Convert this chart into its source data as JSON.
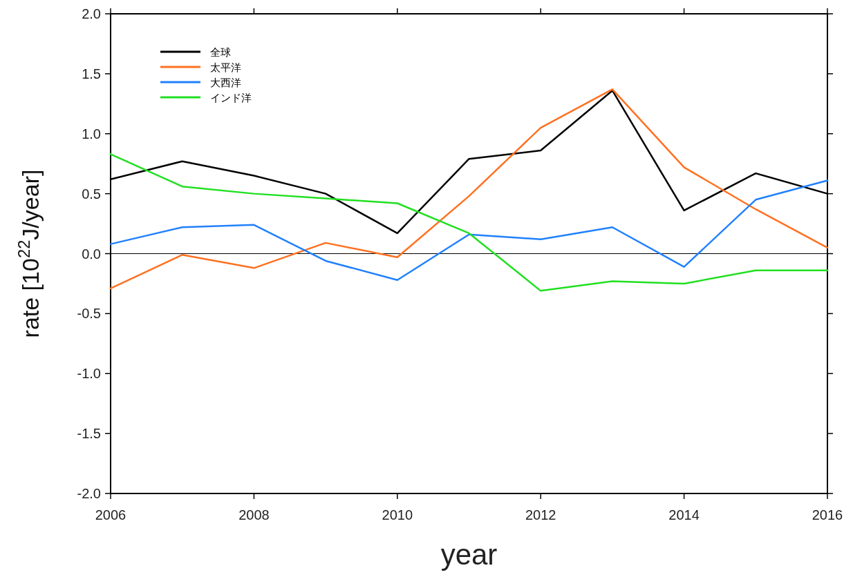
{
  "chart_data": {
    "type": "line",
    "xlabel": "year",
    "ylabel": "rate [10$^{22}$J/year]",
    "x": [
      2006,
      2007,
      2008,
      2009,
      2010,
      2011,
      2012,
      2013,
      2014,
      2015,
      2016
    ],
    "series": [
      {
        "name": "全球",
        "color": "#000000",
        "values": [
          0.62,
          0.77,
          0.65,
          0.5,
          0.17,
          0.79,
          0.86,
          1.36,
          0.36,
          0.67,
          0.5
        ]
      },
      {
        "name": "太平洋",
        "color": "#ff7020",
        "values": [
          -0.29,
          -0.01,
          -0.12,
          0.09,
          -0.03,
          0.48,
          1.05,
          1.37,
          0.72,
          0.37,
          0.05
        ]
      },
      {
        "name": "大西洋",
        "color": "#2080ff",
        "values": [
          0.08,
          0.22,
          0.24,
          -0.06,
          -0.22,
          0.16,
          0.12,
          0.22,
          -0.11,
          0.45,
          0.61
        ]
      },
      {
        "name": "インド洋",
        "color": "#20e020",
        "values": [
          0.83,
          0.56,
          0.5,
          0.46,
          0.42,
          0.17,
          -0.31,
          -0.23,
          -0.25,
          -0.14,
          -0.14
        ]
      }
    ],
    "xlim": [
      2006,
      2016
    ],
    "xticks": [
      2006,
      2008,
      2010,
      2012,
      2014,
      2016
    ],
    "ylim": [
      -2,
      2
    ],
    "yticks": [
      {
        "value": -2,
        "label": "-2.0"
      },
      {
        "value": -1.5,
        "label": "-1.5"
      },
      {
        "value": -1,
        "label": "-1.0"
      },
      {
        "value": -0.5,
        "label": "-0.5"
      },
      {
        "value": 0,
        "label": "0.0"
      },
      {
        "value": 0.5,
        "label": "0.5"
      },
      {
        "value": 1,
        "label": "1.0"
      },
      {
        "value": 1.5,
        "label": "1.5"
      },
      {
        "value": 2,
        "label": "2.0"
      }
    ],
    "ref_lines": [
      {
        "axis": "y",
        "value": 0,
        "color": "#000000"
      }
    ],
    "legend": "top left",
    "grid": false,
    "marker": "none",
    "line_style": "solid"
  }
}
